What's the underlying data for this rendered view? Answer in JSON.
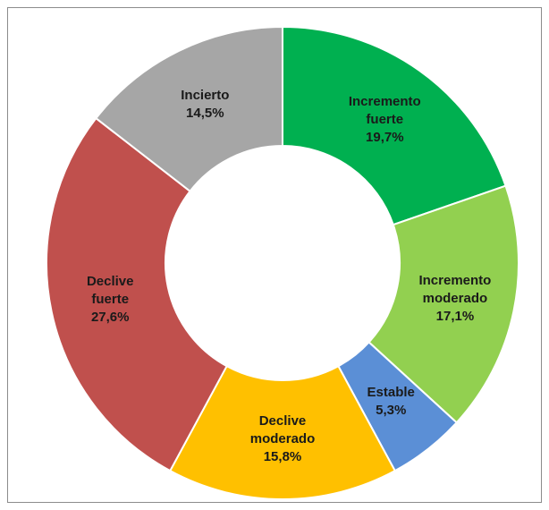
{
  "chart_data": {
    "type": "donut",
    "categories": [
      "Incremento fuerte",
      "Incremento moderado",
      "Estable",
      "Declive moderado",
      "Declive fuerte",
      "Incierto"
    ],
    "values": [
      19.7,
      17.1,
      5.3,
      15.8,
      27.6,
      14.5
    ],
    "value_labels": [
      "19,7%",
      "17,1%",
      "5,3%",
      "15,8%",
      "27,6%",
      "14,5%"
    ],
    "colors": [
      "#00b050",
      "#92d050",
      "#5b8fd6",
      "#ffc000",
      "#c0504d",
      "#a6a6a6"
    ]
  }
}
